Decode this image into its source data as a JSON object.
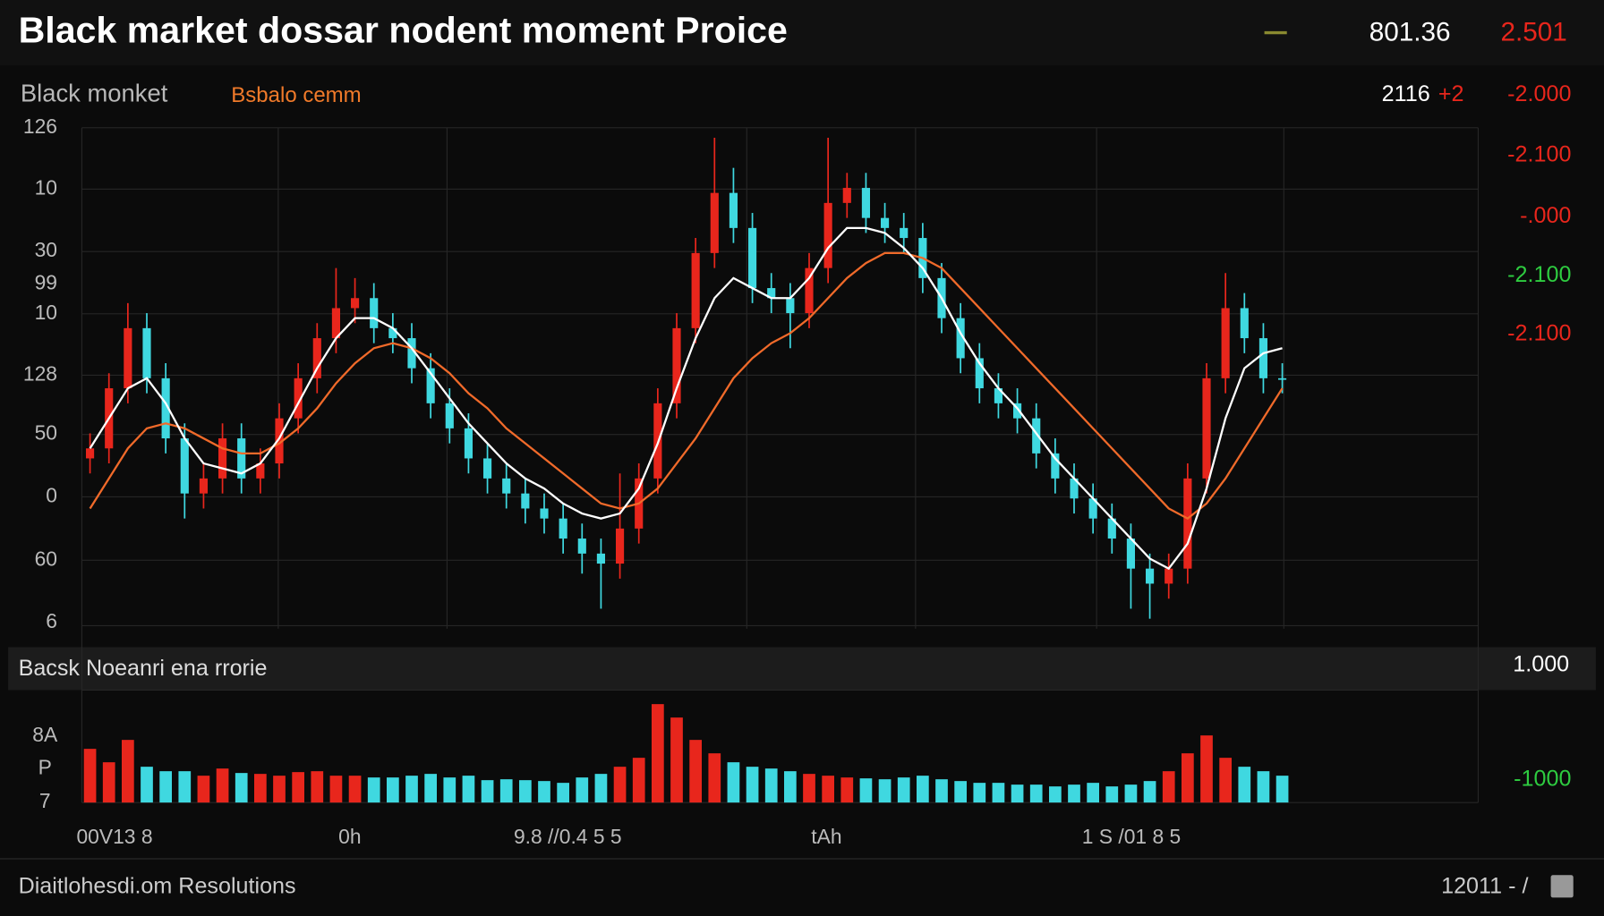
{
  "header": {
    "title": "Black market dossar nodent moment Proice",
    "value": "801.36",
    "change": "2.501"
  },
  "subheader": {
    "label": "Black monket",
    "indicator": "Bsbalo cemm",
    "price": "2116",
    "delta": "+2",
    "level": "-2.000"
  },
  "price_panel": {
    "type": "candlestick",
    "ylim": [
      0,
      100
    ],
    "left_labels": [
      "126",
      "10",
      "30",
      "99",
      "10",
      "128",
      "50",
      "0",
      "60",
      "6"
    ],
    "right_labels": [
      {
        "text": "-2.100",
        "color": "#e8261c"
      },
      {
        "text": "-.000",
        "color": "#e8261c"
      },
      {
        "text": "-2.100",
        "color": "#2ecc40"
      },
      {
        "text": "-2.100",
        "color": "#e8261c"
      }
    ],
    "up_color": "#e8261c",
    "down_color": "#3fd8e0",
    "ma_fast_color": "#ffffff",
    "ma_slow_color": "#f06a2a",
    "open": [
      34,
      36,
      48,
      60,
      50,
      38,
      27,
      30,
      38,
      30,
      33,
      42,
      50,
      58,
      64,
      66,
      60,
      58,
      52,
      45,
      40,
      34,
      30,
      27,
      24,
      22,
      18,
      15,
      13,
      20,
      30,
      45,
      60,
      75,
      87,
      80,
      68,
      66,
      63,
      72,
      85,
      88,
      82,
      80,
      78,
      70,
      62,
      54,
      48,
      45,
      42,
      35,
      30,
      26,
      22,
      18,
      12,
      9,
      12,
      30,
      50,
      64,
      58,
      50
    ],
    "high": [
      39,
      51,
      65,
      63,
      53,
      41,
      33,
      41,
      41,
      36,
      45,
      53,
      61,
      72,
      70,
      69,
      63,
      61,
      55,
      48,
      43,
      37,
      33,
      30,
      27,
      25,
      21,
      18,
      31,
      33,
      48,
      63,
      78,
      98,
      92,
      83,
      71,
      69,
      75,
      98,
      91,
      91,
      85,
      83,
      81,
      73,
      65,
      57,
      51,
      48,
      45,
      38,
      33,
      29,
      25,
      21,
      15,
      15,
      33,
      53,
      71,
      67,
      61,
      53
    ],
    "low": [
      31,
      33,
      45,
      47,
      35,
      22,
      24,
      27,
      27,
      27,
      30,
      39,
      47,
      55,
      61,
      57,
      55,
      49,
      42,
      37,
      31,
      27,
      24,
      21,
      19,
      15,
      11,
      4,
      10,
      17,
      27,
      42,
      57,
      72,
      77,
      65,
      63,
      56,
      60,
      69,
      82,
      79,
      77,
      75,
      67,
      59,
      51,
      45,
      42,
      39,
      32,
      27,
      23,
      19,
      15,
      4,
      2,
      6,
      9,
      27,
      47,
      55,
      47,
      47
    ],
    "close": [
      36,
      48,
      60,
      50,
      38,
      27,
      30,
      38,
      30,
      33,
      42,
      50,
      58,
      64,
      66,
      60,
      58,
      52,
      45,
      40,
      34,
      30,
      27,
      24,
      22,
      18,
      15,
      13,
      20,
      30,
      45,
      60,
      75,
      87,
      80,
      68,
      66,
      63,
      72,
      85,
      88,
      82,
      80,
      78,
      70,
      62,
      54,
      48,
      45,
      42,
      35,
      30,
      26,
      22,
      18,
      12,
      9,
      12,
      30,
      50,
      64,
      58,
      50,
      50
    ],
    "ma_fast": [
      36,
      42,
      48,
      50,
      45,
      38,
      33,
      32,
      31,
      33,
      38,
      45,
      52,
      58,
      62,
      62,
      60,
      56,
      51,
      46,
      41,
      37,
      33,
      30,
      28,
      25,
      23,
      22,
      23,
      28,
      37,
      48,
      58,
      66,
      70,
      68,
      66,
      66,
      70,
      76,
      80,
      80,
      79,
      76,
      72,
      66,
      59,
      53,
      48,
      44,
      39,
      34,
      30,
      26,
      22,
      18,
      14,
      12,
      17,
      28,
      42,
      52,
      55,
      56
    ],
    "ma_slow": [
      24,
      30,
      36,
      40,
      41,
      40,
      38,
      36,
      35,
      35,
      37,
      40,
      44,
      49,
      53,
      56,
      57,
      56,
      54,
      51,
      47,
      44,
      40,
      37,
      34,
      31,
      28,
      25,
      24,
      25,
      28,
      33,
      38,
      44,
      50,
      54,
      57,
      59,
      62,
      66,
      70,
      73,
      75,
      75,
      74,
      72,
      68,
      64,
      60,
      56,
      52,
      48,
      44,
      40,
      36,
      32,
      28,
      24,
      22,
      25,
      30,
      36,
      42,
      48
    ]
  },
  "volume_panel": {
    "title": "Bacsk Noeanri ena rrorie",
    "right_top": "1.000",
    "right_label": "-1000",
    "right_label_color": "#2ecc40",
    "left_labels": [
      "8A",
      "P",
      "7"
    ],
    "ylim": [
      0,
      120
    ],
    "values": [
      60,
      45,
      70,
      40,
      35,
      35,
      30,
      38,
      33,
      32,
      30,
      34,
      35,
      30,
      30,
      28,
      28,
      30,
      32,
      28,
      30,
      25,
      26,
      25,
      24,
      22,
      28,
      32,
      40,
      50,
      110,
      95,
      70,
      55,
      45,
      40,
      38,
      35,
      32,
      30,
      28,
      27,
      26,
      28,
      30,
      26,
      24,
      22,
      22,
      20,
      20,
      18,
      20,
      22,
      18,
      20,
      24,
      35,
      55,
      75,
      50,
      40,
      35,
      30
    ]
  },
  "x_labels": [
    "00V13 8",
    "0h",
    "9.8 //0.4 5 5",
    "tAh",
    "1 S /01 8 5"
  ],
  "footer": {
    "left": "Diaitlohesdi.om Resolutions",
    "right": "12011 - /"
  }
}
